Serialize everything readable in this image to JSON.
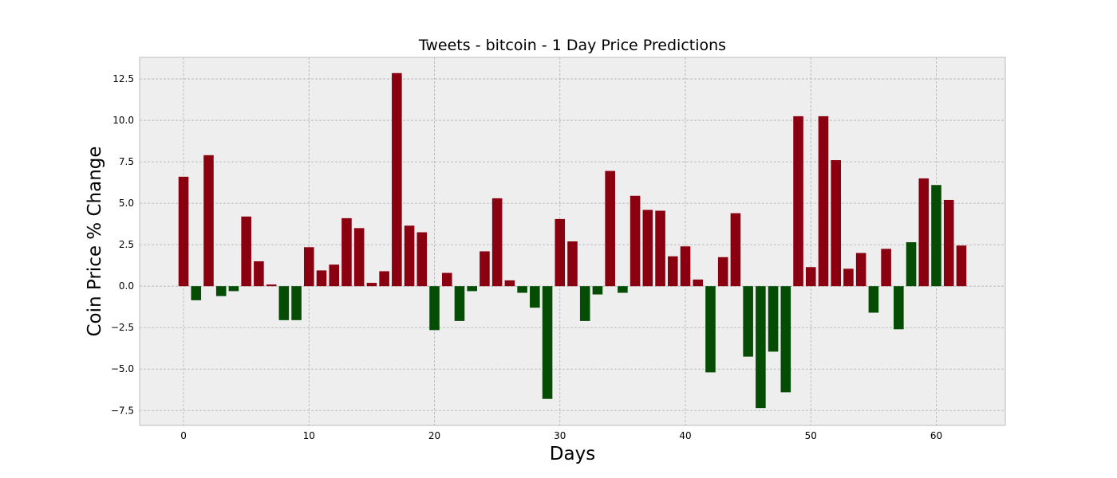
{
  "chart_data": {
    "type": "bar",
    "title": "Tweets - bitcoin - 1 Day Price Predictions",
    "xlabel": "Days",
    "ylabel": "Coin Price % Change",
    "xlim": [
      -3.5,
      65.5
    ],
    "ylim": [
      -8.4,
      13.8
    ],
    "xticks": [
      0,
      10,
      20,
      30,
      40,
      50,
      60
    ],
    "yticks": [
      -7.5,
      -5.0,
      -2.5,
      0.0,
      2.5,
      5.0,
      7.5,
      10.0,
      12.5
    ],
    "ytick_labels": [
      "−7.5",
      "−5.0",
      "−2.5",
      "0.0",
      "2.5",
      "5.0",
      "7.5",
      "10.0",
      "12.5"
    ],
    "grid": true,
    "colors": {
      "red": "#8b0011",
      "green": "#054d05",
      "plot_bg": "#eeeeee",
      "grid": "#b0b0b0",
      "frame": "#bcbcbc"
    },
    "x": [
      0,
      1,
      2,
      3,
      4,
      5,
      6,
      7,
      8,
      9,
      10,
      11,
      12,
      13,
      14,
      15,
      16,
      17,
      18,
      19,
      20,
      21,
      22,
      23,
      24,
      25,
      26,
      27,
      28,
      29,
      30,
      31,
      32,
      33,
      34,
      35,
      36,
      37,
      38,
      39,
      40,
      41,
      42,
      43,
      44,
      45,
      46,
      47,
      48,
      49,
      50,
      51,
      52,
      53,
      54,
      55,
      56,
      57,
      58,
      59,
      60,
      61,
      62
    ],
    "values": [
      6.6,
      -0.85,
      7.9,
      -0.6,
      -0.3,
      4.2,
      1.5,
      0.1,
      -2.05,
      -2.05,
      2.35,
      0.95,
      1.3,
      4.1,
      3.5,
      0.2,
      0.9,
      12.85,
      3.65,
      3.25,
      -2.65,
      0.8,
      -2.1,
      -0.3,
      2.1,
      5.3,
      0.35,
      -0.4,
      -1.3,
      -6.8,
      4.05,
      2.7,
      -2.1,
      -0.5,
      6.95,
      -0.4,
      5.45,
      4.6,
      4.55,
      1.8,
      2.4,
      0.4,
      -5.2,
      1.75,
      4.4,
      -4.25,
      -7.35,
      -3.95,
      -6.4,
      10.25,
      1.15,
      10.25,
      7.6,
      1.05,
      2.0,
      -1.6,
      2.25,
      -2.6,
      2.65,
      6.5,
      6.1,
      5.2,
      2.45
    ],
    "bar_colors": [
      "red",
      "green",
      "red",
      "green",
      "green",
      "red",
      "red",
      "red",
      "green",
      "green",
      "red",
      "red",
      "red",
      "red",
      "red",
      "red",
      "red",
      "red",
      "red",
      "red",
      "green",
      "red",
      "green",
      "green",
      "red",
      "red",
      "red",
      "green",
      "green",
      "green",
      "red",
      "red",
      "green",
      "green",
      "red",
      "green",
      "red",
      "red",
      "red",
      "red",
      "red",
      "red",
      "green",
      "red",
      "red",
      "green",
      "green",
      "green",
      "green",
      "red",
      "red",
      "red",
      "red",
      "red",
      "red",
      "green",
      "red",
      "green",
      "green",
      "red",
      "green",
      "red",
      "red"
    ]
  }
}
